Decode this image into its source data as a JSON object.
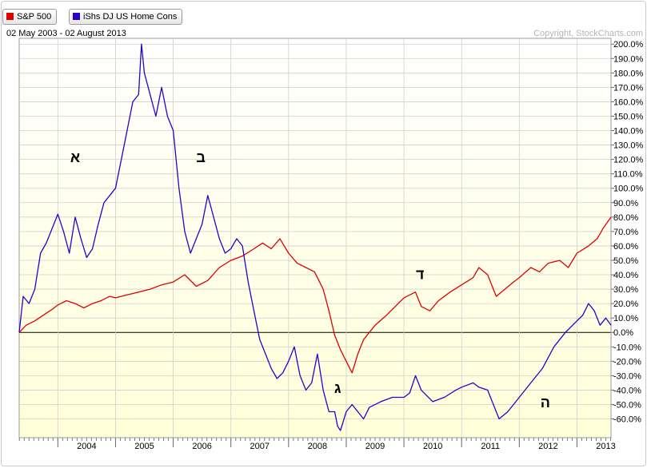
{
  "legend": {
    "items": [
      {
        "label": "S&P 500",
        "color": "#e00000"
      },
      {
        "label": "iShs DJ US Home Cons",
        "color": "#2b00c8"
      }
    ]
  },
  "header": {
    "date_range": "02 May 2003 - 02 August 2013",
    "copyright": "Copyright, StockCharts.com"
  },
  "colors": {
    "background_top": "#ffffff",
    "background_bottom": "#ffffd8",
    "grid": "#cfcfcf",
    "zero_line": "#000000",
    "sp500": "#e00000",
    "home": "#2b00c8"
  },
  "annotations": [
    {
      "label": "א",
      "x": 2004.3,
      "y": 118
    },
    {
      "label": "ב",
      "x": 2006.48,
      "y": 118
    },
    {
      "label": "ג",
      "x": 2008.85,
      "y": -42
    },
    {
      "label": "ד",
      "x": 2010.28,
      "y": 37
    },
    {
      "label": "ה",
      "x": 2012.45,
      "y": -52
    }
  ],
  "chart_data": {
    "type": "line",
    "title": "",
    "xlabel": "",
    "ylabel": "",
    "xlim": [
      2003.33,
      2013.59
    ],
    "ylim": [
      -73,
      204
    ],
    "x_ticks": [
      "2004",
      "2005",
      "2006",
      "2007",
      "2008",
      "2009",
      "2010",
      "2011",
      "2012",
      "2013"
    ],
    "y_ticks": [
      "200.0%",
      "190.0%",
      "180.0%",
      "170.0%",
      "160.0%",
      "150.0%",
      "140.0%",
      "130.0%",
      "120.0%",
      "110.0%",
      "100.0%",
      "90.0%",
      "80.0%",
      "70.0%",
      "60.0%",
      "50.0%",
      "40.0%",
      "30.0%",
      "20.0%",
      "10.0%",
      "0.0%",
      "-10.0%",
      "-20.0%",
      "-30.0%",
      "-40.0%",
      "-50.0%",
      "-60.0%"
    ],
    "y_tick_values": [
      200,
      190,
      180,
      170,
      160,
      150,
      140,
      130,
      120,
      110,
      100,
      90,
      80,
      70,
      60,
      50,
      40,
      30,
      20,
      10,
      0,
      -10,
      -20,
      -30,
      -40,
      -50,
      -60
    ],
    "grid": true,
    "legend_position": "top-left",
    "series": [
      {
        "name": "S&P 500",
        "color": "#e00000",
        "x": [
          2003.33,
          2003.45,
          2003.6,
          2003.75,
          2003.9,
          2004.0,
          2004.15,
          2004.3,
          2004.45,
          2004.6,
          2004.75,
          2004.9,
          2005.0,
          2005.2,
          2005.4,
          2005.6,
          2005.8,
          2006.0,
          2006.2,
          2006.4,
          2006.6,
          2006.8,
          2007.0,
          2007.2,
          2007.4,
          2007.55,
          2007.7,
          2007.85,
          2008.0,
          2008.15,
          2008.3,
          2008.45,
          2008.6,
          2008.7,
          2008.8,
          2008.9,
          2009.0,
          2009.1,
          2009.2,
          2009.3,
          2009.5,
          2009.7,
          2009.9,
          2010.0,
          2010.2,
          2010.3,
          2010.45,
          2010.6,
          2010.8,
          2011.0,
          2011.2,
          2011.3,
          2011.45,
          2011.6,
          2011.75,
          2011.9,
          2012.0,
          2012.2,
          2012.35,
          2012.5,
          2012.7,
          2012.85,
          2013.0,
          2013.2,
          2013.35,
          2013.45,
          2013.59
        ],
        "values": [
          0,
          5,
          8,
          12,
          16,
          19,
          22,
          20,
          17,
          20,
          22,
          25,
          24,
          26,
          28,
          30,
          33,
          35,
          40,
          32,
          36,
          45,
          50,
          53,
          58,
          62,
          58,
          65,
          55,
          48,
          45,
          42,
          30,
          15,
          -2,
          -12,
          -20,
          -28,
          -15,
          -5,
          5,
          12,
          20,
          24,
          28,
          18,
          15,
          22,
          28,
          33,
          38,
          45,
          40,
          25,
          30,
          35,
          38,
          45,
          42,
          48,
          50,
          45,
          55,
          60,
          65,
          72,
          80
        ]
      },
      {
        "name": "iShs DJ US Home Cons",
        "color": "#2b00c8",
        "x": [
          2003.33,
          2003.4,
          2003.5,
          2003.6,
          2003.7,
          2003.8,
          2003.9,
          2004.0,
          2004.1,
          2004.2,
          2004.3,
          2004.4,
          2004.5,
          2004.6,
          2004.7,
          2004.8,
          2004.9,
          2005.0,
          2005.1,
          2005.2,
          2005.3,
          2005.4,
          2005.45,
          2005.5,
          2005.6,
          2005.7,
          2005.8,
          2005.9,
          2006.0,
          2006.1,
          2006.2,
          2006.3,
          2006.4,
          2006.5,
          2006.6,
          2006.7,
          2006.8,
          2006.9,
          2007.0,
          2007.1,
          2007.2,
          2007.3,
          2007.4,
          2007.5,
          2007.6,
          2007.7,
          2007.8,
          2007.9,
          2008.0,
          2008.1,
          2008.2,
          2008.3,
          2008.4,
          2008.5,
          2008.6,
          2008.7,
          2008.8,
          2008.85,
          2008.9,
          2009.0,
          2009.1,
          2009.2,
          2009.3,
          2009.4,
          2009.6,
          2009.8,
          2010.0,
          2010.1,
          2010.2,
          2010.3,
          2010.5,
          2010.7,
          2010.9,
          2011.0,
          2011.2,
          2011.3,
          2011.45,
          2011.55,
          2011.65,
          2011.8,
          2012.0,
          2012.2,
          2012.4,
          2012.6,
          2012.8,
          2013.0,
          2013.1,
          2013.2,
          2013.3,
          2013.4,
          2013.5,
          2013.59
        ],
        "values": [
          0,
          25,
          20,
          30,
          55,
          62,
          72,
          82,
          70,
          55,
          80,
          65,
          52,
          58,
          75,
          90,
          95,
          100,
          120,
          140,
          160,
          165,
          200,
          180,
          165,
          150,
          170,
          150,
          140,
          100,
          70,
          55,
          65,
          75,
          95,
          80,
          65,
          55,
          58,
          65,
          60,
          35,
          15,
          -5,
          -15,
          -25,
          -32,
          -28,
          -20,
          -10,
          -30,
          -40,
          -35,
          -15,
          -40,
          -55,
          -55,
          -65,
          -68,
          -55,
          -50,
          -55,
          -60,
          -52,
          -48,
          -45,
          -45,
          -42,
          -30,
          -40,
          -48,
          -45,
          -40,
          -38,
          -35,
          -38,
          -40,
          -50,
          -60,
          -55,
          -45,
          -35,
          -25,
          -10,
          0,
          8,
          12,
          20,
          15,
          5,
          10,
          5
        ]
      }
    ]
  }
}
